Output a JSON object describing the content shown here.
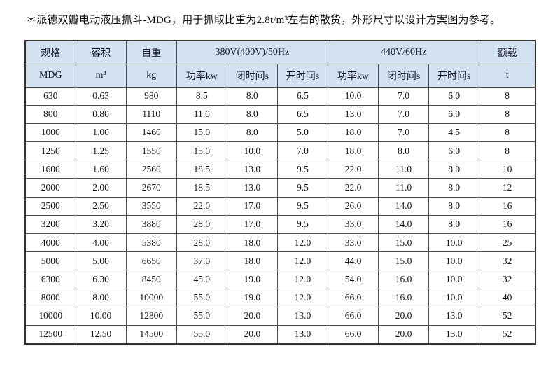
{
  "page": {
    "title": "＊派德双瓣电动液压抓斗-MDG，用于抓取比重为2.8t/m³左右的散货，外形尺寸以设计方案图为参考。"
  },
  "table": {
    "header": {
      "spec": "规格",
      "capacity": "容积",
      "weight": "自重",
      "power_50hz": "380V(400V)/50Hz",
      "power_60hz": "440V/60Hz",
      "rated_load": "额载"
    },
    "subheader": {
      "spec_unit": "MDG",
      "capacity_unit": "m³",
      "weight_unit": "kg",
      "p50_power": "功率kw",
      "p50_close": "闭时间s",
      "p50_open": "开时间s",
      "p60_power": "功率kw",
      "p60_close": "闭时间s",
      "p60_open": "开时间s",
      "load_unit": "t"
    },
    "rows": [
      [
        "630",
        "0.63",
        "980",
        "8.5",
        "8.0",
        "6.5",
        "10.0",
        "7.0",
        "6.0",
        "8"
      ],
      [
        "800",
        "0.80",
        "1110",
        "11.0",
        "8.0",
        "6.5",
        "13.0",
        "7.0",
        "6.0",
        "8"
      ],
      [
        "1000",
        "1.00",
        "1460",
        "15.0",
        "8.0",
        "5.0",
        "18.0",
        "7.0",
        "4.5",
        "8"
      ],
      [
        "1250",
        "1.25",
        "1550",
        "15.0",
        "10.0",
        "7.0",
        "18.0",
        "8.0",
        "6.0",
        "8"
      ],
      [
        "1600",
        "1.60",
        "2560",
        "18.5",
        "13.0",
        "9.5",
        "22.0",
        "11.0",
        "8.0",
        "10"
      ],
      [
        "2000",
        "2.00",
        "2670",
        "18.5",
        "13.0",
        "9.5",
        "22.0",
        "11.0",
        "8.0",
        "12"
      ],
      [
        "2500",
        "2.50",
        "3550",
        "22.0",
        "17.0",
        "9.5",
        "26.0",
        "14.0",
        "8.0",
        "16"
      ],
      [
        "3200",
        "3.20",
        "3880",
        "28.0",
        "17.0",
        "9.5",
        "33.0",
        "14.0",
        "8.0",
        "16"
      ],
      [
        "4000",
        "4.00",
        "5380",
        "28.0",
        "18.0",
        "12.0",
        "33.0",
        "15.0",
        "10.0",
        "25"
      ],
      [
        "5000",
        "5.00",
        "6650",
        "37.0",
        "18.0",
        "12.0",
        "44.0",
        "15.0",
        "10.0",
        "32"
      ],
      [
        "6300",
        "6.30",
        "8450",
        "45.0",
        "19.0",
        "12.0",
        "54.0",
        "16.0",
        "10.0",
        "32"
      ],
      [
        "8000",
        "8.00",
        "10000",
        "55.0",
        "19.0",
        "12.0",
        "66.0",
        "16.0",
        "10.0",
        "40"
      ],
      [
        "10000",
        "10.00",
        "12800",
        "55.0",
        "20.0",
        "13.0",
        "66.0",
        "20.0",
        "13.0",
        "52"
      ],
      [
        "12500",
        "12.50",
        "14500",
        "55.0",
        "20.0",
        "13.0",
        "66.0",
        "20.0",
        "13.0",
        "52"
      ]
    ],
    "colors": {
      "header_bg": "#d2e2f1",
      "border": "#4d4d4d",
      "text": "#131313"
    }
  }
}
